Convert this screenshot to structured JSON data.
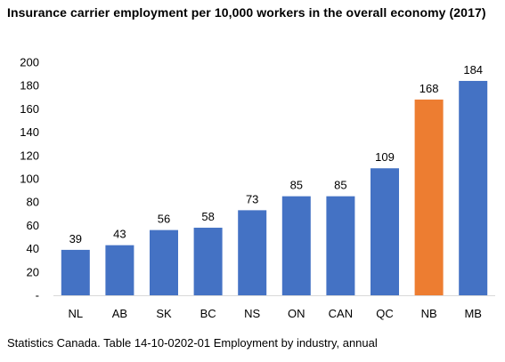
{
  "chart_data": {
    "type": "bar",
    "title": "Insurance carrier employment per 10,000 workers in the overall economy (2017)",
    "source": "Statistics Canada. Table 14-10-0202-01 Employment by industry, annual",
    "categories": [
      "NL",
      "AB",
      "SK",
      "BC",
      "NS",
      "ON",
      "CAN",
      "QC",
      "NB",
      "MB"
    ],
    "values": [
      39,
      43,
      56,
      58,
      73,
      85,
      85,
      109,
      168,
      184
    ],
    "data_labels": [
      "39",
      "43",
      "56",
      "58",
      "73",
      "85",
      "85",
      "109",
      "168",
      "184"
    ],
    "highlight_index": 8,
    "ylim": [
      0,
      200
    ],
    "yticks": [
      0,
      20,
      40,
      60,
      80,
      100,
      120,
      140,
      160,
      180,
      200
    ],
    "ytick_labels": [
      "-",
      "20",
      "40",
      "60",
      "80",
      "100",
      "120",
      "140",
      "160",
      "180",
      "200"
    ],
    "xlabel": "",
    "ylabel": "",
    "grid": false,
    "legend": "none",
    "colors": {
      "bar": "#4472C4",
      "highlight": "#ED7D31",
      "axis": "#D9D9D9"
    }
  }
}
